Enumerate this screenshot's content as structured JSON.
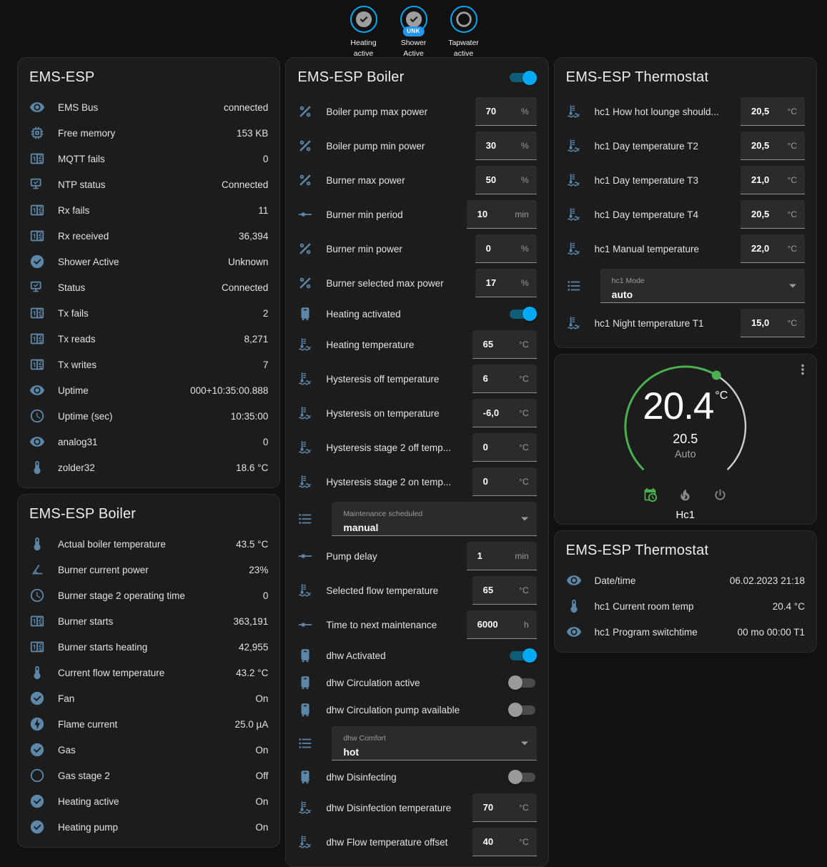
{
  "colors": {
    "accent": "#03a9f4",
    "icon_blue": "#5d87a8",
    "green": "#4caf50",
    "badge_blue": "#2196f3"
  },
  "badges": [
    {
      "icon": "check",
      "line1": "Heating",
      "line2": "active",
      "tag": ""
    },
    {
      "icon": "check",
      "line1": "Shower",
      "line2": "Active",
      "tag": "UNK"
    },
    {
      "icon": "circle",
      "line1": "Tapwater",
      "line2": "active",
      "tag": ""
    }
  ],
  "status_card": {
    "title": "EMS-ESP",
    "rows": [
      {
        "icon": "eye",
        "label": "EMS Bus",
        "value": "connected"
      },
      {
        "icon": "chip",
        "label": "Free memory",
        "value": "153 KB"
      },
      {
        "icon": "counter",
        "label": "MQTT fails",
        "value": "0"
      },
      {
        "icon": "network",
        "label": "NTP status",
        "value": "Connected"
      },
      {
        "icon": "counter",
        "label": "Rx fails",
        "value": "11"
      },
      {
        "icon": "counter",
        "label": "Rx received",
        "value": "36,394"
      },
      {
        "icon": "check-circle",
        "label": "Shower Active",
        "value": "Unknown"
      },
      {
        "icon": "network",
        "label": "Status",
        "value": "Connected"
      },
      {
        "icon": "counter",
        "label": "Tx fails",
        "value": "2"
      },
      {
        "icon": "counter",
        "label": "Tx reads",
        "value": "8,271"
      },
      {
        "icon": "counter",
        "label": "Tx writes",
        "value": "7"
      },
      {
        "icon": "eye",
        "label": "Uptime",
        "value": "000+10:35:00.888"
      },
      {
        "icon": "clock",
        "label": "Uptime (sec)",
        "value": "10:35:00"
      },
      {
        "icon": "eye",
        "label": "analog31",
        "value": "0"
      },
      {
        "icon": "thermometer",
        "label": "zolder32",
        "value": "18.6 °C"
      }
    ]
  },
  "boiler_sensors_card": {
    "title": "EMS-ESP Boiler",
    "rows": [
      {
        "icon": "thermometer",
        "label": "Actual boiler temperature",
        "value": "43.5 °C"
      },
      {
        "icon": "angle",
        "label": "Burner current power",
        "value": "23%"
      },
      {
        "icon": "clock",
        "label": "Burner stage 2 operating time",
        "value": "0"
      },
      {
        "icon": "counter",
        "label": "Burner starts",
        "value": "363,191"
      },
      {
        "icon": "counter",
        "label": "Burner starts heating",
        "value": "42,955"
      },
      {
        "icon": "thermometer",
        "label": "Current flow temperature",
        "value": "43.2 °C"
      },
      {
        "icon": "check-circle",
        "label": "Fan",
        "value": "On"
      },
      {
        "icon": "flash-circle",
        "label": "Flame current",
        "value": "25.0 µA"
      },
      {
        "icon": "check-circle",
        "label": "Gas",
        "value": "On"
      },
      {
        "icon": "circle-outline",
        "label": "Gas stage 2",
        "value": "Off"
      },
      {
        "icon": "check-circle",
        "label": "Heating active",
        "value": "On"
      },
      {
        "icon": "check-circle",
        "label": "Heating pump",
        "value": "On"
      }
    ]
  },
  "boiler_controls_card": {
    "title": "EMS-ESP Boiler",
    "header_toggle": "on",
    "rows": [
      {
        "type": "number",
        "icon": "percent",
        "label": "Boiler pump max power",
        "value": "70",
        "unit": "%"
      },
      {
        "type": "number",
        "icon": "percent",
        "label": "Boiler pump min power",
        "value": "30",
        "unit": "%"
      },
      {
        "type": "number",
        "icon": "percent",
        "label": "Burner max power",
        "value": "50",
        "unit": "%"
      },
      {
        "type": "number",
        "icon": "slider",
        "label": "Burner min period",
        "value": "10",
        "unit": "min"
      },
      {
        "type": "number",
        "icon": "percent",
        "label": "Burner min power",
        "value": "0",
        "unit": "%"
      },
      {
        "type": "number",
        "icon": "percent",
        "label": "Burner selected max power",
        "value": "17",
        "unit": "%"
      },
      {
        "type": "toggle",
        "icon": "boiler",
        "label": "Heating activated",
        "state": "on"
      },
      {
        "type": "number",
        "icon": "thermo-water",
        "label": "Heating temperature",
        "value": "65",
        "unit": "°C"
      },
      {
        "type": "number",
        "icon": "thermo-water",
        "label": "Hysteresis off temperature",
        "value": "6",
        "unit": "°C"
      },
      {
        "type": "number",
        "icon": "thermo-water",
        "label": "Hysteresis on temperature",
        "value": "-6,0",
        "unit": "°C"
      },
      {
        "type": "number",
        "icon": "thermo-water",
        "label": "Hysteresis stage 2 off temp...",
        "value": "0",
        "unit": "°C"
      },
      {
        "type": "number",
        "icon": "thermo-water",
        "label": "Hysteresis stage 2 on temp...",
        "value": "0",
        "unit": "°C"
      },
      {
        "type": "select",
        "icon": "list",
        "label": "Maintenance scheduled",
        "value": "manual"
      },
      {
        "type": "number",
        "icon": "slider",
        "label": "Pump delay",
        "value": "1",
        "unit": "min"
      },
      {
        "type": "number",
        "icon": "thermo-water",
        "label": "Selected flow temperature",
        "value": "65",
        "unit": "°C"
      },
      {
        "type": "number",
        "icon": "slider",
        "label": "Time to next maintenance",
        "value": "6000",
        "unit": "h"
      },
      {
        "type": "toggle",
        "icon": "boiler",
        "label": "dhw Activated",
        "state": "on"
      },
      {
        "type": "toggle",
        "icon": "boiler",
        "label": "dhw Circulation active",
        "state": "off"
      },
      {
        "type": "toggle",
        "icon": "boiler",
        "label": "dhw Circulation pump available",
        "state": "off"
      },
      {
        "type": "select",
        "icon": "list",
        "label": "dhw Comfort",
        "value": "hot"
      },
      {
        "type": "toggle",
        "icon": "boiler",
        "label": "dhw Disinfecting",
        "state": "off"
      },
      {
        "type": "number",
        "icon": "thermo-water",
        "label": "dhw Disinfection temperature",
        "value": "70",
        "unit": "°C"
      },
      {
        "type": "number",
        "icon": "thermo-water",
        "label": "dhw Flow temperature offset",
        "value": "40",
        "unit": "°C"
      }
    ]
  },
  "thermostat_controls_card": {
    "title": "EMS-ESP Thermostat",
    "rows": [
      {
        "type": "number",
        "icon": "thermo-water",
        "label": "hc1 How hot lounge should...",
        "value": "20,5",
        "unit": "°C"
      },
      {
        "type": "number",
        "icon": "thermo-water",
        "label": "hc1 Day temperature T2",
        "value": "20,5",
        "unit": "°C"
      },
      {
        "type": "number",
        "icon": "thermo-water",
        "label": "hc1 Day temperature T3",
        "value": "21,0",
        "unit": "°C"
      },
      {
        "type": "number",
        "icon": "thermo-water",
        "label": "hc1 Day temperature T4",
        "value": "20,5",
        "unit": "°C"
      },
      {
        "type": "number",
        "icon": "thermo-water",
        "label": "hc1 Manual temperature",
        "value": "22,0",
        "unit": "°C"
      },
      {
        "type": "select",
        "icon": "list",
        "label": "hc1 Mode",
        "value": "auto"
      },
      {
        "type": "number",
        "icon": "thermo-water",
        "label": "hc1 Night temperature T1",
        "value": "15,0",
        "unit": "°C"
      }
    ]
  },
  "dial_card": {
    "current": "20.4",
    "unit": "°C",
    "target": "20.5",
    "mode": "Auto",
    "name": "Hc1"
  },
  "thermostat_info_card": {
    "title": "EMS-ESP Thermostat",
    "rows": [
      {
        "icon": "eye",
        "label": "Date/time",
        "value": "06.02.2023 21:18"
      },
      {
        "icon": "thermometer",
        "label": "hc1 Current room temp",
        "value": "20.4 °C"
      },
      {
        "icon": "eye",
        "label": "hc1 Program switchtime",
        "value": "00 mo 00:00 T1"
      }
    ]
  }
}
